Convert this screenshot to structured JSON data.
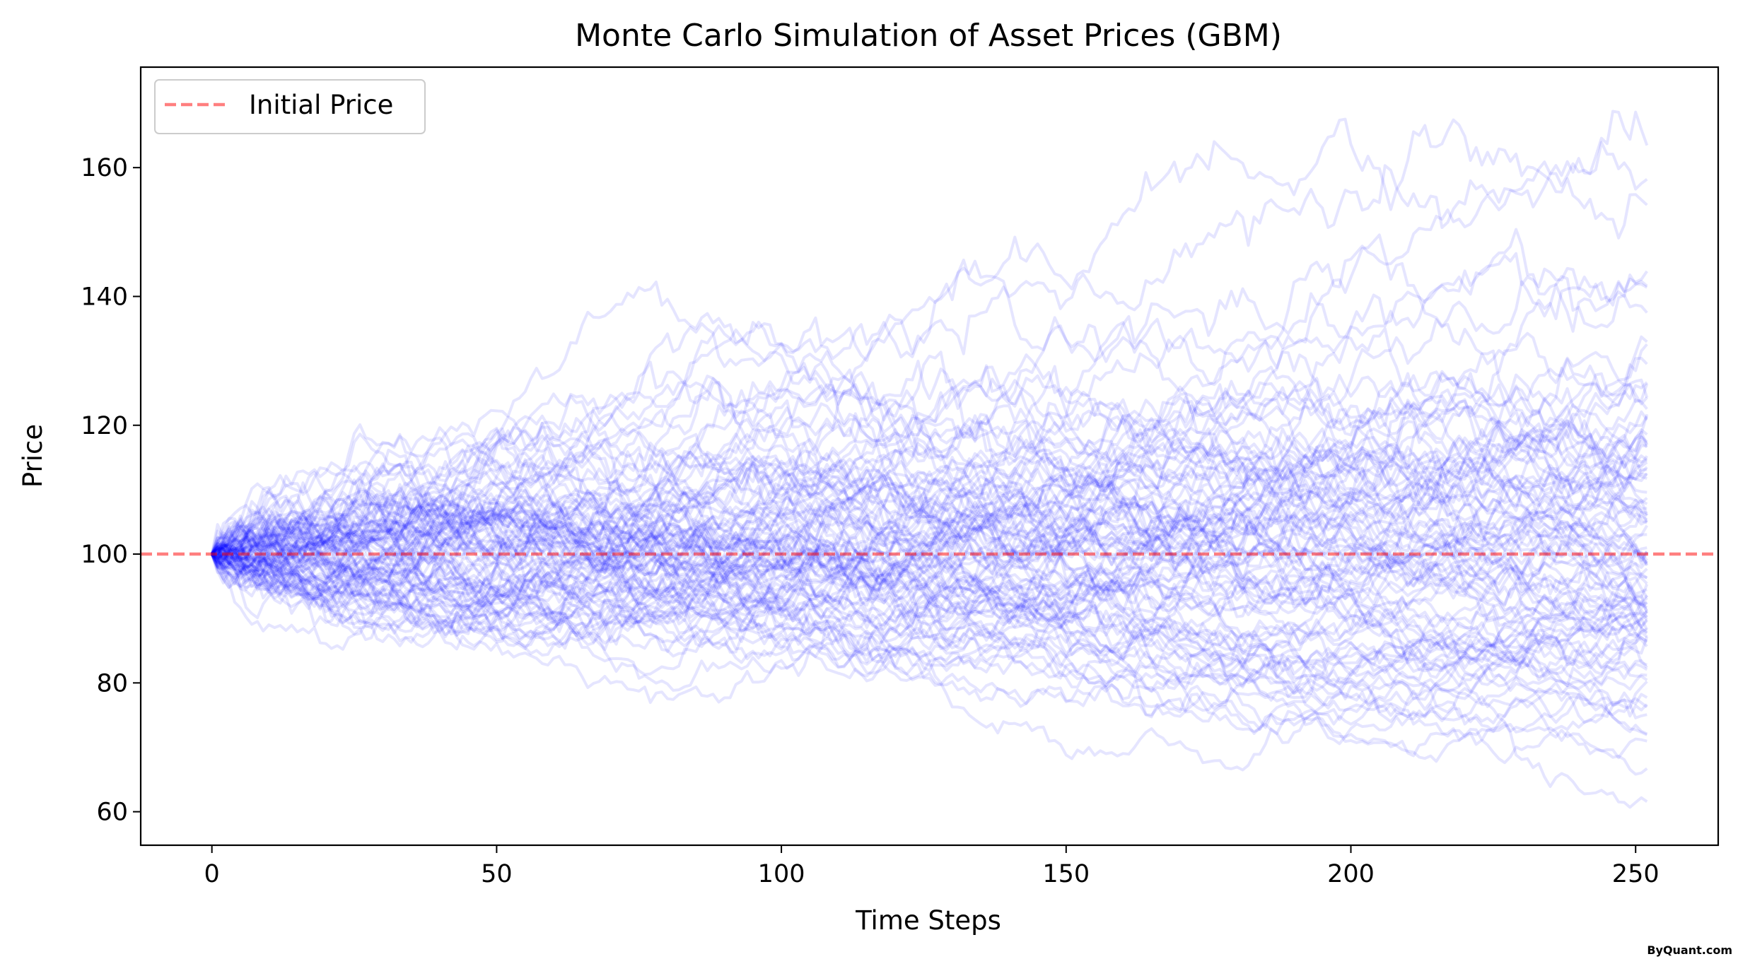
{
  "chart_data": {
    "type": "line",
    "title": "Monte Carlo Simulation of Asset Prices (GBM)",
    "xlabel": "Time Steps",
    "ylabel": "Price",
    "xlim": [
      -12.5,
      264.5
    ],
    "ylim": [
      54.8,
      175.6
    ],
    "xticks": [
      0,
      50,
      100,
      150,
      200,
      250
    ],
    "yticks": [
      60,
      80,
      100,
      120,
      140,
      160
    ],
    "grid": false,
    "legend": {
      "placement": "top-left",
      "entries": [
        {
          "label": "Initial Price",
          "color": "#ff0000",
          "style": "dashed"
        }
      ]
    },
    "reference_line": {
      "label": "Initial Price",
      "y": 100,
      "color": "#ff0000",
      "style": "dashed",
      "alpha": 0.5
    },
    "simulation": {
      "steps": 252,
      "paths": 100,
      "initial_price": 100,
      "path_color": "#0000ff",
      "path_alpha": 0.1,
      "envelope_upper": [
        [
          0,
          100
        ],
        [
          50,
          125
        ],
        [
          100,
          148
        ],
        [
          150,
          162
        ],
        [
          200,
          170
        ],
        [
          252,
          161
        ]
      ],
      "envelope_lower": [
        [
          0,
          100
        ],
        [
          50,
          84
        ],
        [
          100,
          73
        ],
        [
          150,
          68
        ],
        [
          200,
          64
        ],
        [
          252,
          61
        ]
      ],
      "final_values_sample": [
        161,
        157,
        150,
        144,
        138,
        133,
        127,
        122,
        116,
        110,
        105,
        101,
        97,
        93,
        87,
        83,
        78,
        72,
        67,
        62,
        61
      ]
    },
    "watermark": "ByQuant.com"
  }
}
